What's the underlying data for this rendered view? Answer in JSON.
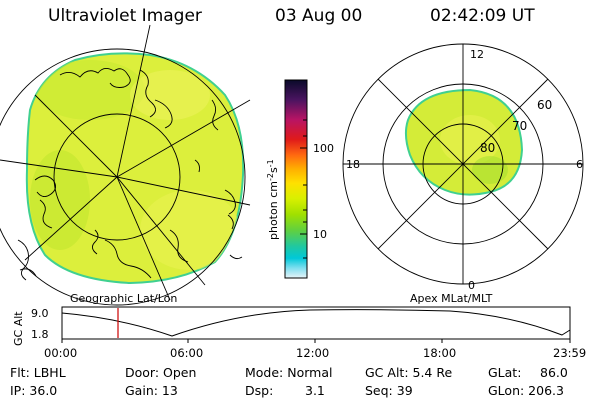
{
  "header": {
    "instrument": "Ultraviolet Imager",
    "date": "03 Aug 00",
    "time": "02:42:09 UT"
  },
  "colorbar": {
    "label": "photon cm",
    "label_sup1": "-2",
    "label_mid": "s",
    "label_sup2": "-1",
    "tick_100": "100",
    "tick_10": "10",
    "colors": [
      "#0a0a2a",
      "#4a1460",
      "#b81464",
      "#e01a1a",
      "#ff6a10",
      "#ffb000",
      "#ffe000",
      "#d8f000",
      "#a0e000",
      "#60d040",
      "#20c8a0",
      "#00c8d8",
      "#80dff0",
      "#e8f4f8"
    ]
  },
  "geo_panel": {
    "caption": "Geographic Lat/Lon",
    "fill_color": "#dcef3c"
  },
  "polar_panel": {
    "caption": "Apex MLat/MLT",
    "mlt_12": "12",
    "mlt_18": "18",
    "mlt_6": "6",
    "mlt_0": "0",
    "lat_60": "60",
    "lat_70": "70",
    "lat_80": "80"
  },
  "altitude_plot": {
    "ylabel": "GC Alt",
    "y_max": "9.0",
    "y_min": "1.8",
    "x_ticks": [
      "00:00",
      "06:00",
      "12:00",
      "18:00",
      "23:59"
    ],
    "marker_color": "#cc0000"
  },
  "status": {
    "flt": "Flt: LBHL",
    "ip": "IP: 36.0",
    "door": "Door: Open",
    "gain": "Gain: 13",
    "mode": "Mode: Normal",
    "dsp_label": "Dsp:",
    "dsp_value": "3.1",
    "gc_alt": "GC Alt: 5.4 Re",
    "seq": "Seq: 39",
    "glat": "GLat:",
    "glat_value": "86.0",
    "glon": "GLon: 206.3"
  }
}
